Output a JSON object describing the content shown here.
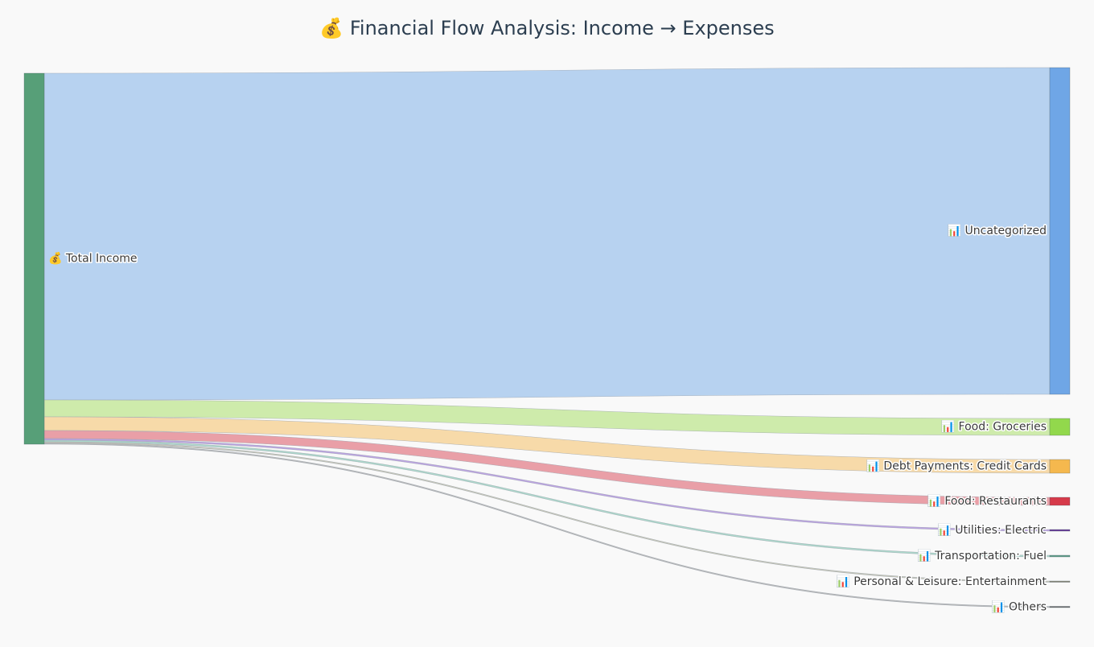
{
  "chart_data": {
    "type": "sankey",
    "title": "💰 Financial Flow Analysis: Income → Expenses",
    "nodes": [
      {
        "label": "💰 Total Income",
        "color": "#579f78"
      },
      {
        "label": "📊 Uncategorized",
        "color": "#6fa6e6"
      },
      {
        "label": "📊 Food: Groceries",
        "color": "#92d84c"
      },
      {
        "label": "📊 Debt Payments: Credit Cards",
        "color": "#f5b84e"
      },
      {
        "label": "📊 Food: Restaurants",
        "color": "#d63a4a"
      },
      {
        "label": "📊 Utilities: Electric",
        "color": "#6a3d9a"
      },
      {
        "label": "📊 Transportation: Fuel",
        "color": "#5f9e8a"
      },
      {
        "label": "📊 Personal & Leisure: Entertainment",
        "color": "#8a8a7a"
      },
      {
        "label": "📊 Others",
        "color": "#6a6a6a"
      }
    ],
    "links": [
      {
        "source": 0,
        "target": 1,
        "value": 406,
        "color": "#b3d0ef"
      },
      {
        "source": 0,
        "target": 2,
        "value": 21,
        "color": "#cbeaa6"
      },
      {
        "source": 0,
        "target": 3,
        "value": 17,
        "color": "#f7d8a4"
      },
      {
        "source": 0,
        "target": 4,
        "value": 10,
        "color": "#e89aa2"
      },
      {
        "source": 0,
        "target": 5,
        "value": 2,
        "color": "#b89ee0"
      },
      {
        "source": 0,
        "target": 6,
        "value": 2,
        "color": "#a8d6c8"
      },
      {
        "source": 0,
        "target": 7,
        "value": 1.5,
        "color": "#c4c4b4"
      },
      {
        "source": 0,
        "target": 8,
        "value": 1.5,
        "color": "#b4b4b4"
      }
    ]
  }
}
